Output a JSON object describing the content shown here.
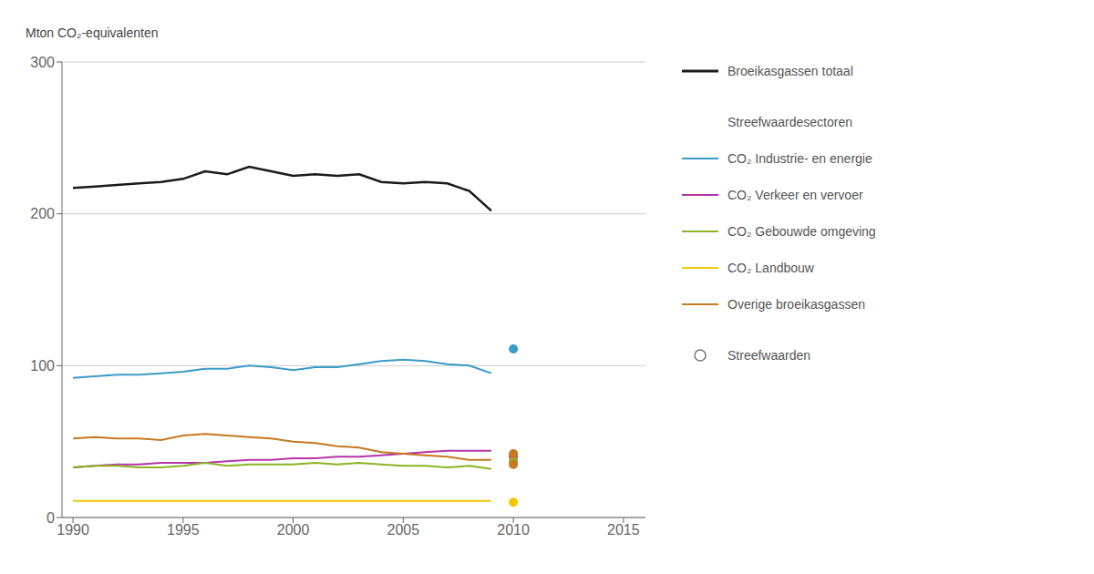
{
  "chart_data": {
    "type": "line",
    "ylabel": "Mton CO₂-equivalenten",
    "x": [
      1990,
      1991,
      1992,
      1993,
      1994,
      1995,
      1996,
      1997,
      1998,
      1999,
      2000,
      2001,
      2002,
      2003,
      2004,
      2005,
      2006,
      2007,
      2008,
      2009
    ],
    "series": [
      {
        "name": "Broeikasgassen totaal",
        "color": "#1a1a1a",
        "values": [
          217,
          218,
          219,
          220,
          221,
          223,
          228,
          226,
          231,
          228,
          225,
          226,
          225,
          226,
          221,
          220,
          221,
          220,
          215,
          202
        ]
      },
      {
        "name": "CO₂ Industrie- en energie",
        "color": "#3a9bc7",
        "values": [
          92,
          93,
          94,
          94,
          95,
          96,
          98,
          98,
          100,
          99,
          97,
          99,
          99,
          101,
          103,
          104,
          103,
          101,
          100,
          95
        ]
      },
      {
        "name": "CO₂ Verkeer en vervoer",
        "color": "#b535a8",
        "values": [
          33,
          34,
          35,
          35,
          36,
          36,
          36,
          37,
          38,
          38,
          39,
          39,
          40,
          40,
          41,
          42,
          43,
          44,
          44,
          44
        ]
      },
      {
        "name": "CO₂ Gebouwde omgeving",
        "color": "#8db323",
        "values": [
          33,
          34,
          34,
          33,
          33,
          34,
          36,
          34,
          35,
          35,
          35,
          36,
          35,
          36,
          35,
          34,
          34,
          33,
          34,
          32
        ]
      },
      {
        "name": "CO₂ Landbouw",
        "color": "#f0c800",
        "values": [
          11,
          11,
          11,
          11,
          11,
          11,
          11,
          11,
          11,
          11,
          11,
          11,
          11,
          11,
          11,
          11,
          11,
          11,
          11,
          11
        ]
      },
      {
        "name": "Overige broeikasgassen",
        "color": "#c87820",
        "values": [
          52,
          53,
          52,
          52,
          51,
          54,
          55,
          54,
          53,
          52,
          50,
          49,
          47,
          46,
          43,
          42,
          41,
          40,
          38,
          38
        ]
      }
    ],
    "legend_header": "Streefwaardesectoren",
    "streefwaarden": {
      "name": "Streefwaarden",
      "x": 2010,
      "points": [
        {
          "series": "CO₂ Industrie- en energie",
          "value": 111
        },
        {
          "series": "CO₂ Verkeer en vervoer",
          "value": 40
        },
        {
          "series": "CO₂ Gebouwde omgeving",
          "value": 37
        },
        {
          "series": "CO₂ Landbouw",
          "value": 10
        },
        {
          "series": "Overige broeikasgassen",
          "value": 42
        },
        {
          "series": "Overige broeikasgassen",
          "value": 35
        }
      ]
    },
    "xlim": [
      1989.5,
      2016
    ],
    "xticks": [
      1990,
      1995,
      2000,
      2005,
      2010,
      2015
    ],
    "ylim": [
      0,
      300
    ],
    "yticks": [
      0,
      100,
      200,
      300
    ],
    "grid": true,
    "legend": "right"
  }
}
